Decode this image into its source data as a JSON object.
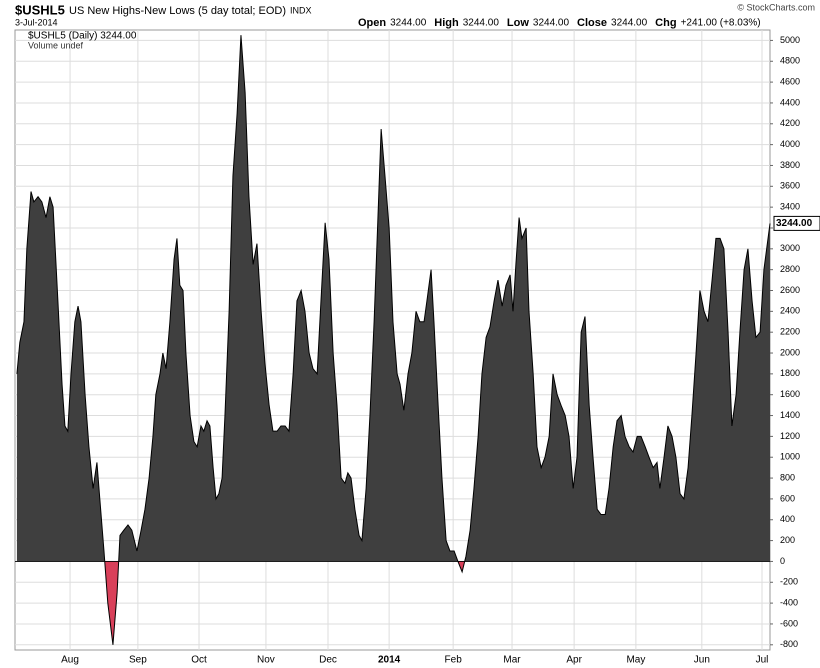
{
  "chart_data": {
    "type": "area",
    "title": "$USHL5",
    "subtitle": "US New Highs-New Lows (5 day total; EOD)",
    "exchange": "INDX",
    "date": "3-Jul-2014",
    "source": "© StockCharts.com",
    "quote": [
      {
        "label": "Open",
        "value": "3244.00"
      },
      {
        "label": "High",
        "value": "3244.00"
      },
      {
        "label": "Low",
        "value": "3244.00"
      },
      {
        "label": "Close",
        "value": "3244.00"
      },
      {
        "label": "Chg",
        "value": "+241.00 (+8.03%)"
      }
    ],
    "legend_label": "$USHL5 (Daily) 3244.00",
    "volume_label": "Volume undef",
    "last_label": "3244.00",
    "positive_color": "#3f3f3f",
    "negative_color": "#d9405a",
    "line_color": "#000000",
    "grid": true,
    "xlim": [
      -0.6,
      235.3
    ],
    "ylim": [
      -850,
      5100
    ],
    "xticks": [
      {
        "value": 16.6,
        "label": "Aug"
      },
      {
        "value": 37.8,
        "label": "Sep"
      },
      {
        "value": 56.9,
        "label": "Oct"
      },
      {
        "value": 77.8,
        "label": "Nov"
      },
      {
        "value": 97.2,
        "label": "Dec"
      },
      {
        "value": 116.3,
        "label": "2014"
      },
      {
        "value": 136.3,
        "label": "Feb"
      },
      {
        "value": 154.7,
        "label": "Mar"
      },
      {
        "value": 174.1,
        "label": "Apr"
      },
      {
        "value": 193.4,
        "label": "May"
      },
      {
        "value": 214,
        "label": "Jun"
      },
      {
        "value": 232.8,
        "label": "Jul"
      }
    ],
    "yticks": [
      -800,
      -600,
      -400,
      -200,
      0,
      200,
      400,
      600,
      800,
      1000,
      1200,
      1400,
      1600,
      1800,
      2000,
      2200,
      2400,
      2600,
      2800,
      3000,
      3200,
      3400,
      3600,
      3800,
      4000,
      4200,
      4400,
      4600,
      4800,
      5000
    ],
    "x": [
      0,
      0.9,
      2.2,
      3.1,
      4.4,
      5.3,
      6.6,
      7.8,
      9.1,
      10.3,
      11.3,
      12.8,
      14.1,
      15,
      15.9,
      16.9,
      18.1,
      19.1,
      20,
      21.3,
      22.5,
      23.8,
      25,
      25.9,
      27.2,
      28.4,
      30,
      31.3,
      32.2,
      33.4,
      34.7,
      35.9,
      37.5,
      38.8,
      40,
      41.3,
      42.5,
      43.4,
      44.7,
      45.6,
      46.6,
      47.8,
      49.1,
      50,
      50.9,
      51.9,
      52.8,
      54.1,
      55.3,
      56.3,
      57.5,
      58.4,
      59.4,
      60.3,
      61.3,
      62.2,
      63.1,
      64.1,
      65,
      66.3,
      67.5,
      68.8,
      70,
      71.3,
      72.5,
      73.8,
      75,
      76.3,
      77.5,
      78.8,
      80,
      81.3,
      82.5,
      83.8,
      85,
      86.3,
      87.5,
      88.8,
      90,
      91.3,
      92.5,
      93.8,
      95,
      96.3,
      97.5,
      98.8,
      100,
      101.3,
      102.5,
      103.4,
      104.4,
      105.6,
      106.9,
      107.8,
      109.1,
      110.3,
      111.6,
      112.8,
      113.8,
      115,
      116.3,
      117.5,
      118.8,
      119.7,
      120.9,
      122.2,
      123.4,
      124.7,
      125.9,
      127.2,
      128.1,
      129.4,
      130.3,
      131.6,
      132.8,
      134.1,
      135.3,
      136.6,
      137.8,
      139.1,
      140.3,
      141.6,
      142.8,
      144.1,
      145.3,
      146.6,
      147.8,
      149.1,
      150.3,
      151.6,
      152.8,
      154.1,
      155,
      155.9,
      156.9,
      157.8,
      159.1,
      160,
      161.3,
      162.5,
      163.8,
      165,
      166.3,
      167.5,
      168.8,
      170,
      171.3,
      172.5,
      173.8,
      175,
      176.3,
      177.5,
      178.8,
      180,
      181.3,
      182.5,
      183.8,
      185,
      186.3,
      187.5,
      188.8,
      190,
      191.3,
      192.5,
      193.8,
      195,
      196.3,
      197.5,
      198.8,
      200,
      200.9,
      202.2,
      203.4,
      204.7,
      205.9,
      207.2,
      208.4,
      209.7,
      210.9,
      212.2,
      213.4,
      214.7,
      215.9,
      217.2,
      218.4,
      219.7,
      220.9,
      222.2,
      223.4,
      224.7,
      225.9,
      227.2,
      228.4,
      229.7,
      230.9,
      232.2,
      233.4,
      235.3
    ],
    "values": [
      1800,
      2100,
      2300,
      3000,
      3550,
      3450,
      3500,
      3450,
      3300,
      3500,
      3400,
      2500,
      1700,
      1300,
      1250,
      1800,
      2300,
      2450,
      2300,
      1600,
      1100,
      700,
      950,
      600,
      100,
      -400,
      -800,
      -300,
      250,
      300,
      350,
      300,
      100,
      300,
      500,
      800,
      1200,
      1600,
      1800,
      2000,
      1850,
      2300,
      2900,
      3100,
      2650,
      2600,
      2000,
      1400,
      1150,
      1100,
      1300,
      1250,
      1350,
      1300,
      900,
      600,
      650,
      800,
      1400,
      2400,
      3700,
      4300,
      5050,
      4500,
      3500,
      2850,
      3050,
      2400,
      1900,
      1500,
      1250,
      1250,
      1300,
      1300,
      1250,
      1800,
      2500,
      2600,
      2400,
      2000,
      1850,
      1800,
      2500,
      3250,
      2900,
      2000,
      1500,
      800,
      750,
      850,
      800,
      500,
      250,
      200,
      700,
      1400,
      2300,
      3300,
      4150,
      3700,
      3200,
      2300,
      1800,
      1700,
      1450,
      1800,
      2000,
      2400,
      2300,
      2300,
      2500,
      2800,
      2300,
      1500,
      800,
      200,
      100,
      100,
      0,
      -100,
      50,
      300,
      700,
      1200,
      1800,
      2150,
      2250,
      2500,
      2700,
      2450,
      2650,
      2750,
      2400,
      2850,
      3300,
      3100,
      3200,
      2400,
      1800,
      1100,
      900,
      1000,
      1200,
      1800,
      1600,
      1500,
      1400,
      1200,
      700,
      1000,
      2200,
      2350,
      1500,
      1000,
      500,
      450,
      450,
      700,
      1100,
      1350,
      1400,
      1200,
      1100,
      1050,
      1200,
      1200,
      1100,
      1000,
      900,
      950,
      700,
      1000,
      1300,
      1200,
      1000,
      650,
      600,
      900,
      1400,
      2000,
      2600,
      2400,
      2300,
      2700,
      3100,
      3100,
      3000,
      2200,
      1300,
      1600,
      2200,
      2800,
      3000,
      2500,
      2150,
      2200,
      2800,
      3244
    ]
  }
}
